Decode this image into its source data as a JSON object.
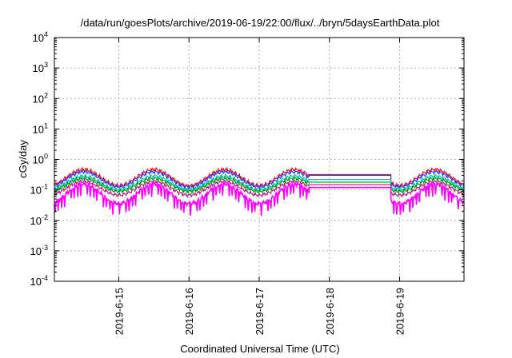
{
  "chart_data": {
    "type": "line",
    "title": "/data/run/goesPlots/archive/2019-06-19/22:00/flux/../bryn/5daysEarthData.plot",
    "xlabel": "Coordinated Universal Time (UTC)",
    "ylabel": "cGy/day",
    "y_scale": "log",
    "ylim": [
      0.0001,
      10000
    ],
    "xlim": [
      "2019-06-14 02:00",
      "2019-06-19 22:00"
    ],
    "y_ticks": [
      {
        "value": 0.0001,
        "base": "10",
        "exp": "-4"
      },
      {
        "value": 0.001,
        "base": "10",
        "exp": "-3"
      },
      {
        "value": 0.01,
        "base": "10",
        "exp": "-2"
      },
      {
        "value": 0.1,
        "base": "10",
        "exp": "-1"
      },
      {
        "value": 1,
        "base": "10",
        "exp": "0"
      },
      {
        "value": 10,
        "base": "10",
        "exp": "1"
      },
      {
        "value": 100,
        "base": "10",
        "exp": "2"
      },
      {
        "value": 1000,
        "base": "10",
        "exp": "3"
      },
      {
        "value": 10000,
        "base": "10",
        "exp": "4"
      }
    ],
    "x_ticks": [
      "2019-6-15",
      "2019-6-16",
      "2019-6-17",
      "2019-6-18",
      "2019-6-19"
    ],
    "grid": true,
    "legend": "none",
    "data_gap": [
      "2019-06-17 17:00",
      "2019-06-18 21:00"
    ],
    "series": [
      {
        "color": "#ff0000",
        "peak": 0.5,
        "trough": 0.12,
        "gap_value": 0.32
      },
      {
        "color": "#2040ff",
        "peak": 0.42,
        "trough": 0.11,
        "gap_value": 0.3
      },
      {
        "color": "#00bfbf",
        "peak": 0.3,
        "trough": 0.09,
        "gap_value": 0.22
      },
      {
        "color": "#00a000",
        "peak": 0.25,
        "trough": 0.08,
        "gap_value": 0.18
      },
      {
        "color": "#b0208a",
        "peak": 0.2,
        "trough": 0.06,
        "gap_value": 0.15
      },
      {
        "color": "#ff00ff",
        "peak": 0.17,
        "trough": 0.03,
        "gap_value": 0.12
      }
    ]
  }
}
